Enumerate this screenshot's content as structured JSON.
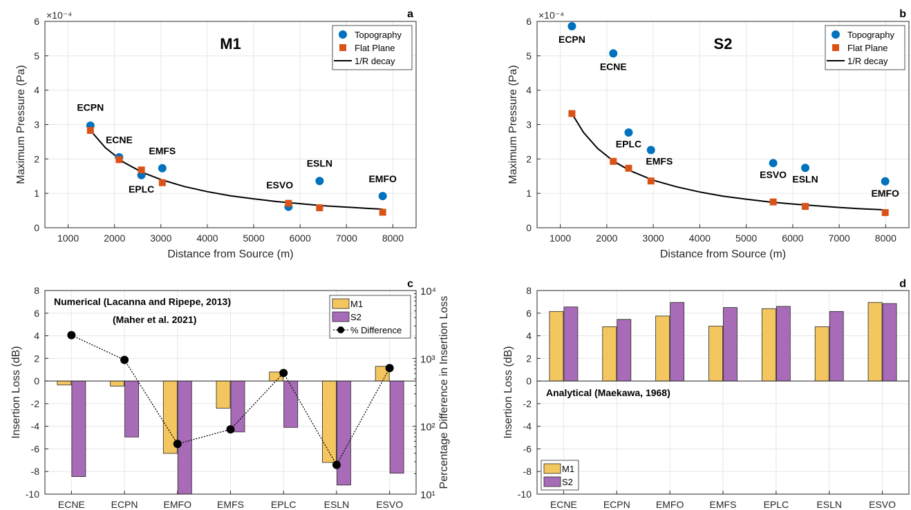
{
  "chart_data": [
    {
      "panel": "a",
      "type": "scatter",
      "title": "M1",
      "xlabel": "Distance from Source (m)",
      "ylabel": "Maximum Pressure (Pa)",
      "exponent_label": "×10⁻⁴",
      "xlim": [
        500,
        8500
      ],
      "ylim": [
        0,
        6
      ],
      "xticks": [
        1000,
        2000,
        3000,
        4000,
        5000,
        6000,
        7000,
        8000
      ],
      "yticks": [
        0,
        1,
        2,
        3,
        4,
        5,
        6
      ],
      "grid": true,
      "legend_position": "top-right",
      "series": [
        {
          "name": "Topography",
          "marker": "circle",
          "color": "#0072BD",
          "x": [
            1480,
            2100,
            2580,
            3030,
            5750,
            6420,
            7780
          ],
          "y": [
            2.97,
            2.05,
            1.53,
            1.73,
            0.61,
            1.36,
            0.92
          ]
        },
        {
          "name": "Flat Plane",
          "marker": "square",
          "color": "#D95319",
          "x": [
            1480,
            2100,
            2580,
            3030,
            5750,
            6420,
            7780
          ],
          "y": [
            2.83,
            1.98,
            1.68,
            1.31,
            0.71,
            0.58,
            0.45
          ]
        },
        {
          "name": "1/R decay",
          "marker": "line",
          "color": "#000000",
          "x": [
            1480,
            1800,
            2200,
            2600,
            3000,
            3500,
            4000,
            4500,
            5000,
            5500,
            6000,
            6500,
            7000,
            7500,
            7780
          ],
          "y": [
            2.83,
            2.33,
            1.9,
            1.61,
            1.4,
            1.2,
            1.05,
            0.93,
            0.84,
            0.76,
            0.7,
            0.64,
            0.6,
            0.56,
            0.54
          ]
        }
      ],
      "point_labels": [
        {
          "text": "ECPN",
          "x": 1480,
          "y": 3.4
        },
        {
          "text": "ECNE",
          "x": 2100,
          "y": 2.46
        },
        {
          "text": "EPLC",
          "x": 2580,
          "y": 1.02
        },
        {
          "text": "EMFS",
          "x": 3030,
          "y": 2.14
        },
        {
          "text": "ESVO",
          "x": 5560,
          "y": 1.14
        },
        {
          "text": "ESLN",
          "x": 6420,
          "y": 1.78
        },
        {
          "text": "EMFO",
          "x": 7780,
          "y": 1.32
        }
      ],
      "panel_label": "a"
    },
    {
      "panel": "b",
      "type": "scatter",
      "title": "S2",
      "xlabel": "Distance from Source (m)",
      "ylabel": "Maximum Pressure (Pa)",
      "exponent_label": "×10⁻⁴",
      "xlim": [
        500,
        8500
      ],
      "ylim": [
        0,
        6
      ],
      "xticks": [
        1000,
        2000,
        3000,
        4000,
        5000,
        6000,
        7000,
        8000
      ],
      "yticks": [
        0,
        1,
        2,
        3,
        4,
        5,
        6
      ],
      "grid": true,
      "legend_position": "top-right",
      "series": [
        {
          "name": "Topography",
          "marker": "circle",
          "color": "#0072BD",
          "x": [
            1250,
            2140,
            2470,
            2950,
            5580,
            6270,
            7990
          ],
          "y": [
            5.86,
            5.07,
            2.77,
            2.26,
            1.88,
            1.74,
            1.35
          ]
        },
        {
          "name": "Flat Plane",
          "marker": "square",
          "color": "#D95319",
          "x": [
            1250,
            2140,
            2470,
            2950,
            5580,
            6270,
            7990
          ],
          "y": [
            3.32,
            1.93,
            1.73,
            1.36,
            0.75,
            0.62,
            0.44
          ]
        },
        {
          "name": "1/R decay",
          "marker": "line",
          "color": "#000000",
          "x": [
            1250,
            1500,
            1800,
            2140,
            2500,
            3000,
            3500,
            4000,
            4500,
            5000,
            5500,
            6000,
            6500,
            7000,
            7500,
            7990
          ],
          "y": [
            3.32,
            2.77,
            2.31,
            1.94,
            1.66,
            1.38,
            1.19,
            1.04,
            0.92,
            0.83,
            0.75,
            0.69,
            0.64,
            0.59,
            0.55,
            0.52
          ]
        }
      ],
      "point_labels": [
        {
          "text": "ECPN",
          "x": 1250,
          "y": 5.38
        },
        {
          "text": "ECNE",
          "x": 2140,
          "y": 4.59
        },
        {
          "text": "EPLC",
          "x": 2470,
          "y": 2.34
        },
        {
          "text": "EMFS",
          "x": 3130,
          "y": 1.84
        },
        {
          "text": "ESVO",
          "x": 5580,
          "y": 1.44
        },
        {
          "text": "ESLN",
          "x": 6270,
          "y": 1.31
        },
        {
          "text": "EMFO",
          "x": 7990,
          "y": 0.9
        }
      ],
      "panel_label": "b"
    },
    {
      "panel": "c",
      "type": "bar",
      "categories": [
        "ECNE",
        "ECPN",
        "EMFO",
        "EMFS",
        "EPLC",
        "ESLN",
        "ESVO"
      ],
      "ylabel": "Insertion Loss (dB)",
      "ylabel_right": "Percentage Difference in Insertion Loss",
      "ylim": [
        -10,
        8
      ],
      "yticks": [
        -10,
        -8,
        -6,
        -4,
        -2,
        0,
        2,
        4,
        6,
        8
      ],
      "ylim_right": [
        10,
        10000
      ],
      "yscale_right": "log",
      "yticks_right": [
        "10¹",
        "10²",
        "10³",
        "10⁴"
      ],
      "grid": true,
      "legend_position": "top-right",
      "series": [
        {
          "name": "M1",
          "color": "#F3C65F",
          "values": [
            -0.35,
            -0.45,
            -6.4,
            -2.4,
            0.8,
            -7.2,
            1.3
          ]
        },
        {
          "name": "S2",
          "color": "#A86BB7",
          "values": [
            -8.45,
            -4.95,
            -10.0,
            -4.5,
            -4.1,
            -9.2,
            -8.15
          ]
        },
        {
          "name": "% Difference",
          "color": "#000000",
          "axis": "right",
          "style": "dotted-line-circle",
          "values": [
            2200,
            950,
            55,
            90,
            610,
            27,
            720
          ]
        }
      ],
      "annotations": [
        "Numerical  (Lacanna and Ripepe, 2013)",
        "(Maher et al. 2021)"
      ],
      "panel_label": "c"
    },
    {
      "panel": "d",
      "type": "bar",
      "categories": [
        "ECNE",
        "ECPN",
        "EMFO",
        "EMFS",
        "EPLC",
        "ESLN",
        "ESVO"
      ],
      "ylabel": "Insertion Loss (dB)",
      "ylim": [
        -10,
        8
      ],
      "yticks": [
        -10,
        -8,
        -6,
        -4,
        -2,
        0,
        2,
        4,
        6,
        8
      ],
      "grid": true,
      "legend_position": "bottom-left",
      "series": [
        {
          "name": "M1",
          "color": "#F3C65F",
          "values": [
            6.15,
            4.8,
            5.75,
            4.85,
            6.4,
            4.8,
            6.95
          ]
        },
        {
          "name": "S2",
          "color": "#A86BB7",
          "values": [
            6.55,
            5.45,
            6.95,
            6.5,
            6.6,
            6.15,
            6.85
          ]
        }
      ],
      "annotations": [
        "Analytical (Maekawa, 1968)"
      ],
      "panel_label": "d"
    }
  ]
}
